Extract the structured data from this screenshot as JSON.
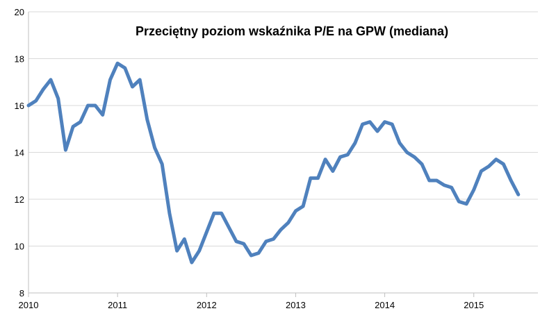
{
  "chart_data": {
    "type": "line",
    "title": "Przeciętny poziom wskaźnika P/E na GPW (mediana)",
    "xlabel": "",
    "ylabel": "",
    "xlim": [
      2010,
      2015.72
    ],
    "ylim": [
      8,
      20
    ],
    "x_ticks": [
      2010,
      2011,
      2012,
      2013,
      2014,
      2015
    ],
    "x_tick_labels": [
      "2010",
      "2011",
      "2012",
      "2013",
      "2014",
      "2015"
    ],
    "y_ticks": [
      8,
      10,
      12,
      14,
      16,
      18,
      20
    ],
    "y_tick_labels": [
      "8",
      "10",
      "12",
      "14",
      "16",
      "18",
      "20"
    ],
    "grid": "horizontal",
    "legend": "none",
    "series_color": "#4f81bd",
    "series": [
      {
        "x": [
          2010.0,
          2010.083,
          2010.167,
          2010.25,
          2010.333,
          2010.417,
          2010.5,
          2010.583,
          2010.667,
          2010.75,
          2010.833,
          2010.917,
          2011.0,
          2011.083,
          2011.167,
          2011.25,
          2011.333,
          2011.417,
          2011.5,
          2011.583,
          2011.667,
          2011.75,
          2011.833,
          2011.917,
          2012.0,
          2012.083,
          2012.167,
          2012.25,
          2012.333,
          2012.417,
          2012.5,
          2012.583,
          2012.667,
          2012.75,
          2012.833,
          2012.917,
          2013.0,
          2013.083,
          2013.167,
          2013.25,
          2013.333,
          2013.417,
          2013.5,
          2013.583,
          2013.667,
          2013.75,
          2013.833,
          2013.917,
          2014.0,
          2014.083,
          2014.167,
          2014.25,
          2014.333,
          2014.417,
          2014.5,
          2014.583,
          2014.667,
          2014.75,
          2014.833,
          2014.917,
          2015.0,
          2015.083,
          2015.167,
          2015.25,
          2015.333,
          2015.417,
          2015.5
        ],
        "values": [
          16.0,
          16.2,
          16.7,
          17.1,
          16.3,
          14.1,
          15.1,
          15.3,
          16.0,
          16.0,
          15.6,
          17.1,
          17.8,
          17.6,
          16.8,
          17.1,
          15.4,
          14.2,
          13.5,
          11.4,
          9.8,
          10.3,
          9.3,
          9.8,
          10.6,
          11.4,
          11.4,
          10.8,
          10.2,
          10.1,
          9.6,
          9.7,
          10.2,
          10.3,
          10.7,
          11.0,
          11.5,
          11.7,
          12.9,
          12.9,
          13.7,
          13.2,
          13.8,
          13.9,
          14.4,
          15.2,
          15.3,
          14.9,
          15.3,
          15.2,
          14.4,
          14.0,
          13.8,
          13.5,
          12.8,
          12.8,
          12.6,
          12.5,
          11.9,
          11.8,
          12.4,
          13.2,
          13.4,
          13.7,
          13.5,
          12.8,
          12.2
        ]
      }
    ]
  }
}
